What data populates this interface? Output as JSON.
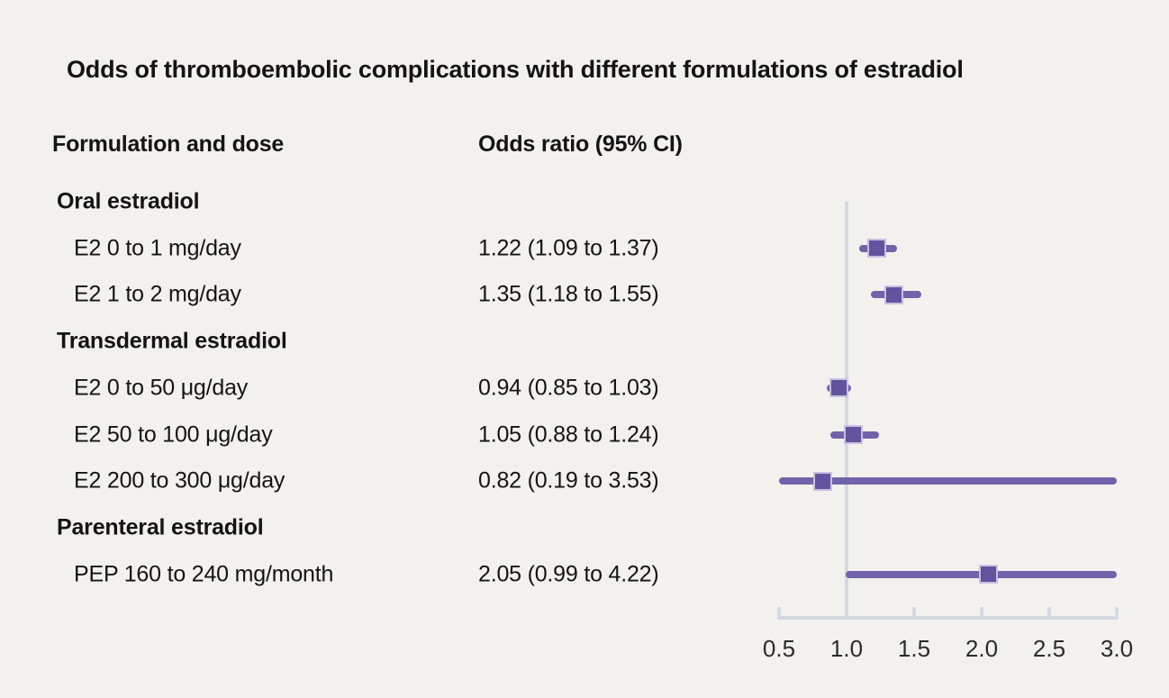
{
  "title": "Odds of thromboembolic complications with different formulations of estradiol",
  "columns": {
    "formulation": "Formulation and dose",
    "odds": "Odds ratio (95% CI)"
  },
  "colors": {
    "background": "#f2f1ee",
    "text": "#141414",
    "tick_label_color": "#2b2b2b",
    "ci_line": "#7163a9",
    "marker_fill": "#62539e",
    "marker_edge": "#c7c0e2",
    "axis": "#d3d8e1",
    "reference_line": "#d3d8e1"
  },
  "chart_data": {
    "type": "forest",
    "title": "Odds of thromboembolic complications with different formulations of estradiol",
    "xlabel": "",
    "ylabel": "",
    "xlim": [
      0.5,
      3.0
    ],
    "x_ticks": [
      0.5,
      1.0,
      1.5,
      2.0,
      2.5,
      3.0
    ],
    "x_tick_labels": [
      "0.5",
      "1.0",
      "1.5",
      "2.0",
      "2.5",
      "3.0"
    ],
    "reference_value": 1.0,
    "grid": false,
    "legend": "none",
    "rows": [
      {
        "kind": "group",
        "label": "Oral estradiol"
      },
      {
        "kind": "item",
        "label": "E2 0 to 1 mg/day",
        "or_text": "1.22 (1.09 to 1.37)",
        "or": 1.22,
        "ci_low": 1.09,
        "ci_high": 1.37
      },
      {
        "kind": "item",
        "label": "E2 1 to 2 mg/day",
        "or_text": "1.35 (1.18 to 1.55)",
        "or": 1.35,
        "ci_low": 1.18,
        "ci_high": 1.55
      },
      {
        "kind": "group",
        "label": "Transdermal estradiol"
      },
      {
        "kind": "item",
        "label": "E2 0 to 50 μg/day",
        "or_text": "0.94 (0.85 to 1.03)",
        "or": 0.94,
        "ci_low": 0.85,
        "ci_high": 1.03
      },
      {
        "kind": "item",
        "label": "E2 50 to 100 μg/day",
        "or_text": "1.05 (0.88 to 1.24)",
        "or": 1.05,
        "ci_low": 0.88,
        "ci_high": 1.24
      },
      {
        "kind": "item",
        "label": "E2 200 to 300 μg/day",
        "or_text": "0.82 (0.19 to 3.53)",
        "or": 0.82,
        "ci_low": 0.19,
        "ci_high": 3.53
      },
      {
        "kind": "group",
        "label": "Parenteral estradiol"
      },
      {
        "kind": "item",
        "label": "PEP 160 to 240 mg/month",
        "or_text": "2.05 (0.99 to 4.22)",
        "or": 2.05,
        "ci_low": 0.99,
        "ci_high": 4.22
      }
    ]
  }
}
